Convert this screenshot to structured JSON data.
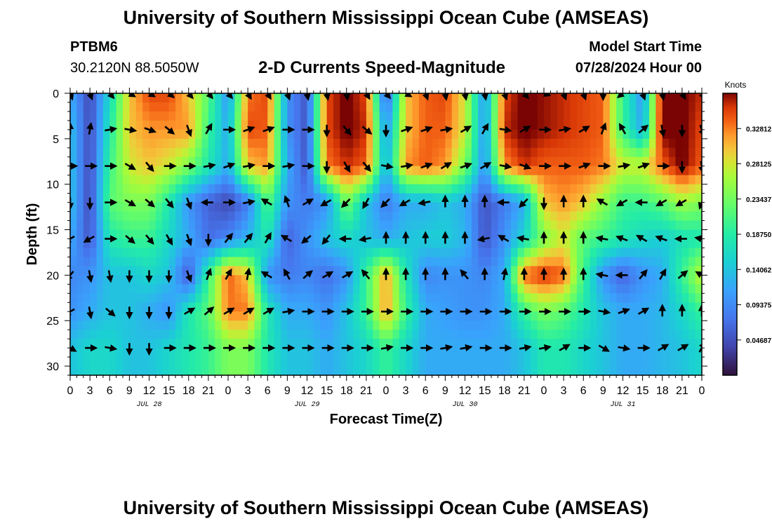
{
  "header": {
    "title": "University of Southern Mississippi Ocean Cube (AMSEAS)",
    "station": "PTBM6",
    "location": "30.2120N  88.5050W",
    "subtitle": "2-D Currents Speed-Magnitude",
    "model_start_label": "Model Start Time",
    "model_start_value": "07/28/2024 Hour 00"
  },
  "footer": {
    "title": "University of Southern Mississippi Ocean Cube (AMSEAS)"
  },
  "chart_data": {
    "type": "heatmap",
    "title": "2-D Currents Speed-Magnitude",
    "xlabel": "Forecast Time(Z)",
    "ylabel": "Depth (ft)",
    "x_tick_labels": [
      "0",
      "3",
      "6",
      "9",
      "12",
      "15",
      "18",
      "21",
      "0",
      "3",
      "6",
      "9",
      "12",
      "15",
      "18",
      "21",
      "0",
      "3",
      "6",
      "9",
      "12",
      "15",
      "18",
      "21",
      "0",
      "3",
      "6",
      "9",
      "12",
      "15",
      "18",
      "21",
      "0"
    ],
    "x_range_hours": [
      0,
      96
    ],
    "day_labels": [
      {
        "label": "JUL 28",
        "hour": 12
      },
      {
        "label": "JUL 29",
        "hour": 36
      },
      {
        "label": "JUL 30",
        "hour": 60
      },
      {
        "label": "JUL 31",
        "hour": 84
      }
    ],
    "y_ticks": [
      0,
      5,
      10,
      15,
      20,
      25,
      30
    ],
    "y_range_ft": [
      0,
      31
    ],
    "colorbar": {
      "unit": "Knots",
      "min": 0.0,
      "max": 0.375,
      "tick_labels": [
        "0.32812",
        "0.28125",
        "0.23437",
        "0.18750",
        "0.14062",
        "0.09375",
        "0.04687"
      ],
      "tick_values": [
        0.32812,
        0.28125,
        0.23437,
        0.1875,
        0.14062,
        0.09375,
        0.04687
      ]
    },
    "depth_levels_ft": [
      0,
      4,
      8,
      12,
      16,
      20,
      24,
      28
    ],
    "time_steps_hours": [
      0,
      3,
      6,
      9,
      12,
      15,
      18,
      21,
      24,
      27,
      30,
      33,
      36,
      39,
      42,
      45,
      48,
      51,
      54,
      57,
      60,
      63,
      66,
      69,
      72,
      75,
      78,
      81,
      84,
      87,
      90,
      93,
      96
    ],
    "speed_knots": [
      [
        0.12,
        0.04,
        0.16,
        0.3,
        0.35,
        0.35,
        0.3,
        0.22,
        0.1,
        0.33,
        0.35,
        0.1,
        0.05,
        0.35,
        0.38,
        0.35,
        0.05,
        0.3,
        0.34,
        0.35,
        0.28,
        0.1,
        0.35,
        0.38,
        0.37,
        0.36,
        0.35,
        0.34,
        0.2,
        0.1,
        0.38,
        0.38,
        0.36
      ],
      [
        0.14,
        0.04,
        0.18,
        0.3,
        0.32,
        0.32,
        0.32,
        0.2,
        0.12,
        0.35,
        0.34,
        0.1,
        0.05,
        0.35,
        0.38,
        0.36,
        0.1,
        0.3,
        0.34,
        0.34,
        0.28,
        0.1,
        0.36,
        0.38,
        0.37,
        0.36,
        0.35,
        0.34,
        0.2,
        0.12,
        0.38,
        0.38,
        0.35
      ],
      [
        0.14,
        0.04,
        0.2,
        0.28,
        0.3,
        0.28,
        0.24,
        0.18,
        0.12,
        0.3,
        0.32,
        0.12,
        0.05,
        0.33,
        0.36,
        0.34,
        0.12,
        0.32,
        0.34,
        0.32,
        0.24,
        0.1,
        0.32,
        0.36,
        0.34,
        0.34,
        0.34,
        0.33,
        0.28,
        0.28,
        0.34,
        0.38,
        0.34
      ],
      [
        0.14,
        0.04,
        0.22,
        0.24,
        0.24,
        0.18,
        0.1,
        0.06,
        0.04,
        0.08,
        0.22,
        0.1,
        0.08,
        0.1,
        0.24,
        0.14,
        0.08,
        0.12,
        0.12,
        0.14,
        0.12,
        0.05,
        0.08,
        0.12,
        0.3,
        0.32,
        0.3,
        0.25,
        0.2,
        0.2,
        0.22,
        0.26,
        0.24
      ],
      [
        0.12,
        0.05,
        0.18,
        0.2,
        0.2,
        0.16,
        0.12,
        0.07,
        0.09,
        0.13,
        0.18,
        0.06,
        0.1,
        0.14,
        0.16,
        0.14,
        0.12,
        0.14,
        0.15,
        0.15,
        0.13,
        0.05,
        0.1,
        0.16,
        0.24,
        0.28,
        0.22,
        0.2,
        0.18,
        0.16,
        0.15,
        0.17,
        0.18
      ],
      [
        0.09,
        0.1,
        0.14,
        0.14,
        0.16,
        0.14,
        0.05,
        0.2,
        0.34,
        0.3,
        0.1,
        0.08,
        0.09,
        0.07,
        0.1,
        0.2,
        0.32,
        0.18,
        0.09,
        0.1,
        0.1,
        0.09,
        0.12,
        0.34,
        0.36,
        0.34,
        0.2,
        0.1,
        0.06,
        0.1,
        0.12,
        0.2,
        0.28
      ],
      [
        0.1,
        0.12,
        0.14,
        0.14,
        0.12,
        0.1,
        0.18,
        0.22,
        0.33,
        0.33,
        0.18,
        0.12,
        0.12,
        0.1,
        0.14,
        0.2,
        0.32,
        0.2,
        0.12,
        0.11,
        0.1,
        0.1,
        0.12,
        0.2,
        0.24,
        0.22,
        0.18,
        0.14,
        0.12,
        0.12,
        0.13,
        0.16,
        0.2
      ],
      [
        0.14,
        0.16,
        0.16,
        0.14,
        0.14,
        0.16,
        0.18,
        0.2,
        0.24,
        0.24,
        0.18,
        0.14,
        0.14,
        0.12,
        0.14,
        0.16,
        0.2,
        0.16,
        0.12,
        0.12,
        0.12,
        0.12,
        0.12,
        0.14,
        0.18,
        0.18,
        0.16,
        0.14,
        0.12,
        0.12,
        0.13,
        0.14,
        0.16
      ]
    ],
    "direction_deg": [
      [
        160,
        160,
        140,
        120,
        120,
        130,
        140,
        140,
        140,
        150,
        150,
        160,
        170,
        170,
        170,
        150,
        140,
        120,
        160,
        170,
        170,
        170,
        160,
        140,
        110,
        160,
        160,
        180,
        230,
        160,
        170,
        150,
        150
      ],
      [
        0,
        10,
        80,
        100,
        110,
        130,
        160,
        30,
        90,
        70,
        70,
        90,
        90,
        180,
        140,
        130,
        180,
        70,
        70,
        80,
        60,
        30,
        100,
        60,
        90,
        80,
        60,
        20,
        330,
        50,
        170,
        180,
        160
      ],
      [
        90,
        90,
        90,
        120,
        140,
        90,
        90,
        80,
        70,
        80,
        90,
        80,
        90,
        180,
        150,
        140,
        100,
        80,
        70,
        60,
        70,
        60,
        100,
        110,
        90,
        90,
        70,
        90,
        80,
        70,
        90,
        180,
        170
      ],
      [
        180,
        180,
        90,
        120,
        130,
        140,
        160,
        270,
        90,
        80,
        300,
        340,
        60,
        240,
        225,
        210,
        225,
        240,
        260,
        0,
        0,
        0,
        270,
        225,
        180,
        0,
        0,
        300,
        240,
        270,
        240,
        240,
        200
      ],
      [
        240,
        240,
        90,
        130,
        140,
        150,
        160,
        180,
        40,
        40,
        30,
        300,
        230,
        220,
        270,
        260,
        0,
        0,
        0,
        0,
        0,
        260,
        300,
        280,
        0,
        0,
        0,
        280,
        290,
        300,
        290,
        270,
        280
      ],
      [
        220,
        170,
        170,
        180,
        180,
        180,
        160,
        20,
        30,
        10,
        300,
        330,
        50,
        60,
        60,
        320,
        0,
        0,
        0,
        0,
        320,
        0,
        10,
        0,
        0,
        0,
        0,
        280,
        270,
        40,
        30,
        50,
        300
      ],
      [
        240,
        170,
        130,
        180,
        180,
        180,
        60,
        50,
        60,
        60,
        60,
        80,
        90,
        90,
        90,
        90,
        90,
        90,
        90,
        90,
        90,
        90,
        90,
        90,
        90,
        90,
        90,
        100,
        70,
        60,
        0,
        0,
        0
      ],
      [
        120,
        90,
        100,
        180,
        180,
        90,
        90,
        90,
        90,
        90,
        90,
        90,
        90,
        90,
        90,
        90,
        80,
        90,
        90,
        80,
        80,
        90,
        90,
        80,
        80,
        60,
        90,
        120,
        100,
        90,
        60,
        60,
        30
      ]
    ]
  }
}
